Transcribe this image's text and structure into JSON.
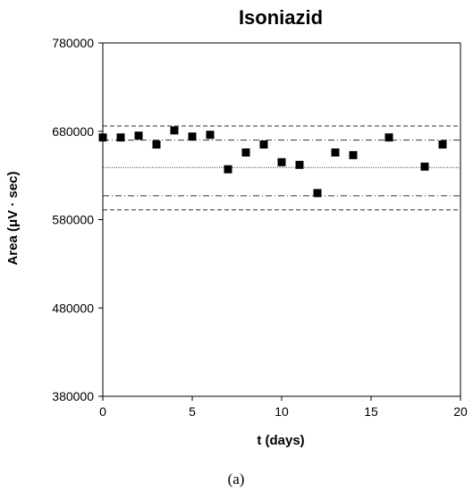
{
  "chart_data": {
    "type": "scatter",
    "title": "Isoniazid",
    "xlabel": "t (days)",
    "ylabel": "Area (μV · sec)",
    "caption": "(a)",
    "xlim": [
      0,
      20
    ],
    "ylim": [
      380000,
      780000
    ],
    "x_ticks": [
      0,
      5,
      10,
      15,
      20
    ],
    "y_ticks": [
      380000,
      480000,
      580000,
      680000,
      780000
    ],
    "x_tick_labels": [
      "0",
      "5",
      "10",
      "15",
      "20"
    ],
    "y_tick_labels": [
      "380000",
      "480000",
      "580000",
      "680000",
      "780000"
    ],
    "marker": "square",
    "marker_color": "#000000",
    "grid": false,
    "series": [
      {
        "x": [
          0,
          1,
          2,
          3,
          4,
          5,
          6,
          7,
          8,
          9,
          10,
          11,
          12,
          13,
          14,
          16,
          18,
          19
        ],
        "y": [
          673000,
          673000,
          675000,
          665000,
          681000,
          674000,
          676000,
          637000,
          656000,
          665000,
          645000,
          642000,
          610000,
          656000,
          653000,
          673000,
          640000,
          665000
        ]
      }
    ],
    "reference_lines": [
      {
        "y": 686000,
        "style": "dashed"
      },
      {
        "y": 670000,
        "style": "dash-dot"
      },
      {
        "y": 639000,
        "style": "dotted"
      },
      {
        "y": 607000,
        "style": "dash-dot"
      },
      {
        "y": 591000,
        "style": "dashed"
      }
    ]
  }
}
